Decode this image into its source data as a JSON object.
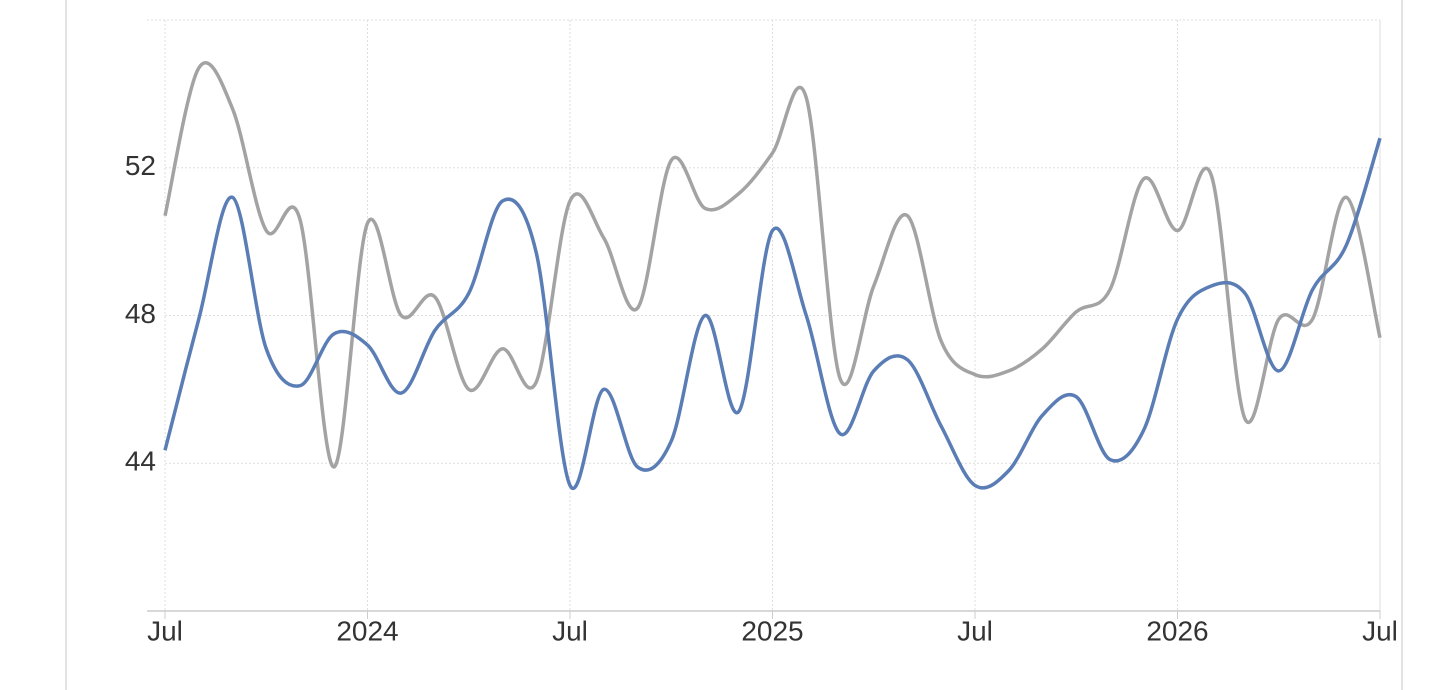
{
  "chart_data": {
    "type": "line",
    "categories": [
      "Jul",
      null,
      null,
      null,
      null,
      null,
      "2024",
      null,
      null,
      null,
      null,
      null,
      "Jul",
      null,
      null,
      null,
      null,
      null,
      "2025",
      null,
      null,
      null,
      null,
      null,
      "Jul",
      null,
      null,
      null,
      null,
      null,
      "2026",
      null,
      null,
      null,
      null,
      null,
      "Jul"
    ],
    "series": [
      {
        "color": "#a3a3a3",
        "values": [
          50.7,
          54.7,
          53.6,
          50.3,
          50.6,
          43.9,
          50.5,
          48.0,
          48.5,
          46.0,
          47.1,
          46.2,
          51.1,
          50.1,
          48.2,
          52.2,
          50.9,
          51.3,
          52.4,
          53.9,
          46.3,
          48.8,
          50.7,
          47.3,
          46.4,
          46.5,
          47.1,
          48.1,
          48.7,
          51.7,
          50.3,
          51.8,
          45.2,
          47.9,
          47.9,
          51.2,
          47.4
        ]
      },
      {
        "color": "#5b7db5",
        "values": [
          44.35,
          47.9,
          51.2,
          47.1,
          46.1,
          47.5,
          47.2,
          45.9,
          47.6,
          48.6,
          51.1,
          49.7,
          43.4,
          46.0,
          43.9,
          44.6,
          48.0,
          45.4,
          50.3,
          48.0,
          44.8,
          46.5,
          46.8,
          45.0,
          43.4,
          43.8,
          45.3,
          45.8,
          44.1,
          44.9,
          47.9,
          48.8,
          48.6,
          46.5,
          48.7,
          49.9,
          52.8
        ]
      }
    ],
    "ylim": [
      40,
      56
    ],
    "yticks": [
      44,
      48,
      52
    ],
    "grid": true
  }
}
